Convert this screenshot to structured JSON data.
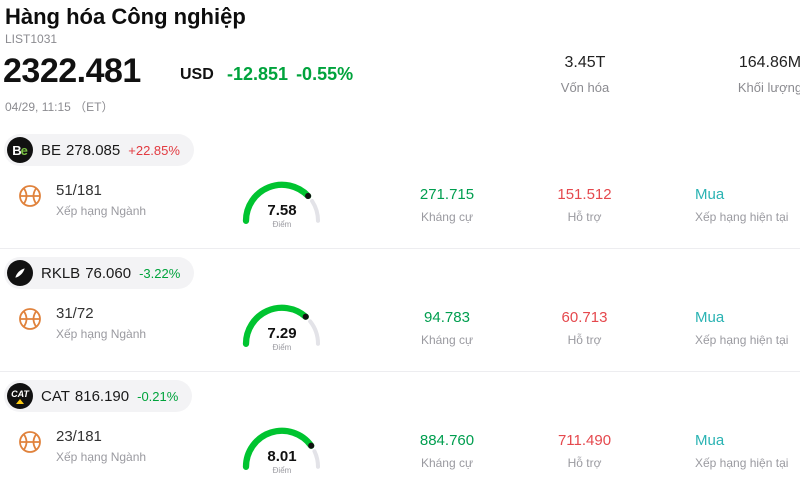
{
  "colors": {
    "positive_change": "#e23b41",
    "negative_change": "#00a33c",
    "resistance": "#009e4f",
    "support": "#e5484d",
    "rating": "#2ab3b3",
    "gauge_green": "#00c430"
  },
  "header": {
    "title": "Hàng hóa Công nghiệp",
    "list_id": "LIST1031"
  },
  "quote": {
    "price": "2322.481",
    "currency": "USD",
    "change": "-12.851",
    "change_pct": "-0.55%",
    "change_color": "#00a33c",
    "datetime": "04/29, 11:15 （ET）",
    "market_cap_value": "3.45T",
    "market_cap_label": "Vốn hóa",
    "volume_value": "164.86M",
    "volume_label": "Khối lượng"
  },
  "stocks": [
    {
      "ticker": "BE",
      "price": "278.085",
      "change_pct": "+22.85%",
      "change_color": "#e23b41",
      "logo": {
        "t1": "B",
        "t2": "e"
      },
      "rank": "51/181",
      "rank_label": "Xếp hạng Ngành",
      "score": "7.58",
      "score_label": "Điểm",
      "gauge": 0.758,
      "resistance_value": "271.715",
      "resistance_label": "Kháng cự",
      "support_value": "151.512",
      "support_label": "Hỗ trợ",
      "rating_value": "Mua",
      "rating_label": "Xếp hạng hiện tại"
    },
    {
      "ticker": "RKLB",
      "price": "76.060",
      "change_pct": "-3.22%",
      "change_color": "#00a33c",
      "rank": "31/72",
      "rank_label": "Xếp hạng Ngành",
      "score": "7.29",
      "score_label": "Điểm",
      "gauge": 0.729,
      "resistance_value": "94.783",
      "resistance_label": "Kháng cự",
      "support_value": "60.713",
      "support_label": "Hỗ trợ",
      "rating_value": "Mua",
      "rating_label": "Xếp hạng hiện tại"
    },
    {
      "ticker": "CAT",
      "price": "816.190",
      "change_pct": "-0.21%",
      "change_color": "#00a33c",
      "logo": {
        "text": "CAT"
      },
      "rank": "23/181",
      "rank_label": "Xếp hạng Ngành",
      "score": "8.01",
      "score_label": "Điểm",
      "gauge": 0.801,
      "resistance_value": "884.760",
      "resistance_label": "Kháng cự",
      "support_value": "711.490",
      "support_label": "Hỗ trợ",
      "rating_value": "Mua",
      "rating_label": "Xếp hạng hiện tại"
    }
  ]
}
